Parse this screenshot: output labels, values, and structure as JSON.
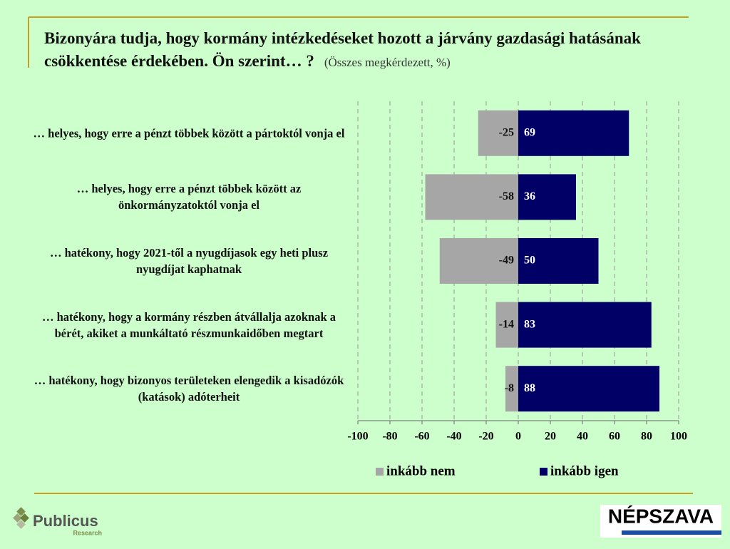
{
  "chart_data": {
    "type": "diverging-bar",
    "title": "Bizonyára tudja, hogy kormány intézkedéseket hozott a járvány gazdasági hatásának csökkentése érdekében. Ön szerint… ?",
    "subtitle": "(Összes megkérdezett, %)",
    "categories": [
      "… helyes, hogy erre a pénzt többek között a pártoktól vonja el",
      "… helyes, hogy erre a pénzt többek között az önkormányzatoktól vonja el",
      "… hatékony, hogy 2021-től a nyugdíjasok egy heti plusz nyugdíjat kaphatnak",
      "… hatékony, hogy a kormány részben átvállalja azoknak a bérét, akiket a munkáltató részmunkaidőben megtart",
      "… hatékony, hogy bizonyos területeken elengedik a kisadózók (katások) adóterheit"
    ],
    "series": [
      {
        "name": "inkább nem",
        "color": "#a6a6a6",
        "values": [
          -25,
          -58,
          -49,
          -14,
          -8
        ]
      },
      {
        "name": "inkább igen",
        "color": "#000066",
        "values": [
          69,
          36,
          50,
          83,
          88
        ]
      }
    ],
    "xlim": [
      -100,
      100
    ],
    "xticks": [
      -100,
      -80,
      -60,
      -40,
      -20,
      0,
      20,
      40,
      60,
      80,
      100
    ],
    "grid": true,
    "legend": "bottom"
  },
  "logos": {
    "publicus": "Publicus",
    "publicus_sub": "Research",
    "nepszava": "NÉPSZAVA"
  }
}
